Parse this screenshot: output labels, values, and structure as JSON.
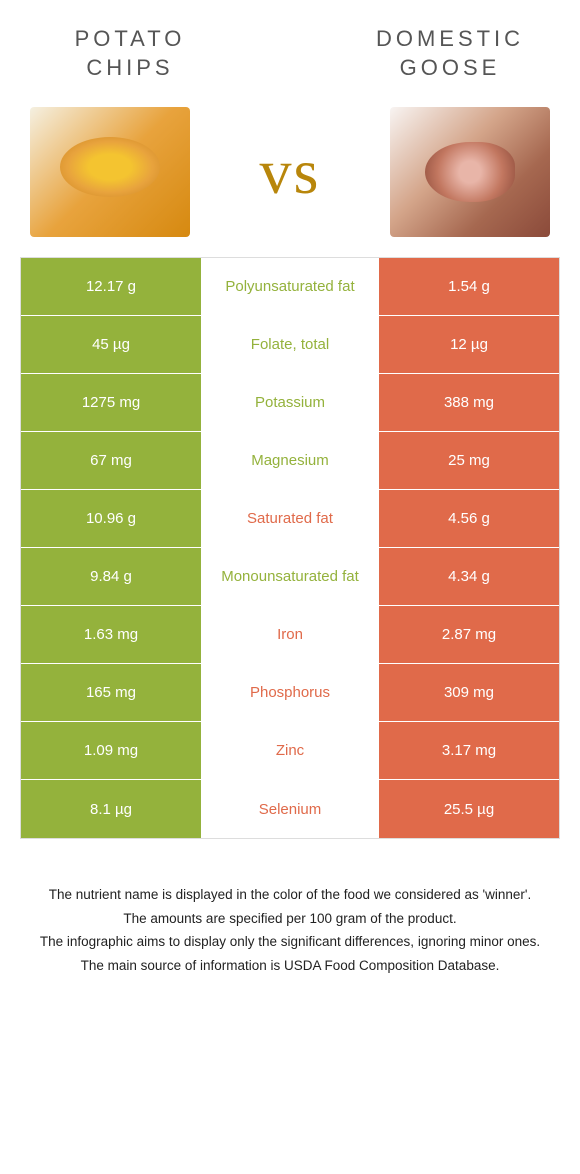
{
  "leftFood": {
    "title": "POTATO\nCHIPS"
  },
  "rightFood": {
    "title": "DOMESTIC\nGOOSE"
  },
  "vs": "vs",
  "colors": {
    "left": "#94b23c",
    "right": "#e06a4a"
  },
  "rows": [
    {
      "left": "12.17 g",
      "nutrient": "Polyunsaturated fat",
      "right": "1.54 g",
      "winner": "left"
    },
    {
      "left": "45 µg",
      "nutrient": "Folate, total",
      "right": "12 µg",
      "winner": "left"
    },
    {
      "left": "1275 mg",
      "nutrient": "Potassium",
      "right": "388 mg",
      "winner": "left"
    },
    {
      "left": "67 mg",
      "nutrient": "Magnesium",
      "right": "25 mg",
      "winner": "left"
    },
    {
      "left": "10.96 g",
      "nutrient": "Saturated fat",
      "right": "4.56 g",
      "winner": "right"
    },
    {
      "left": "9.84 g",
      "nutrient": "Monounsaturated fat",
      "right": "4.34 g",
      "winner": "left"
    },
    {
      "left": "1.63 mg",
      "nutrient": "Iron",
      "right": "2.87 mg",
      "winner": "right"
    },
    {
      "left": "165 mg",
      "nutrient": "Phosphorus",
      "right": "309 mg",
      "winner": "right"
    },
    {
      "left": "1.09 mg",
      "nutrient": "Zinc",
      "right": "3.17 mg",
      "winner": "right"
    },
    {
      "left": "8.1 µg",
      "nutrient": "Selenium",
      "right": "25.5 µg",
      "winner": "right"
    }
  ],
  "footer": [
    "The nutrient name is displayed in the color of the food we considered as 'winner'.",
    "The amounts are specified per 100 gram of the product.",
    "The infographic aims to display only the significant differences, ignoring minor ones.",
    "The main source of information is USDA Food Composition Database."
  ]
}
